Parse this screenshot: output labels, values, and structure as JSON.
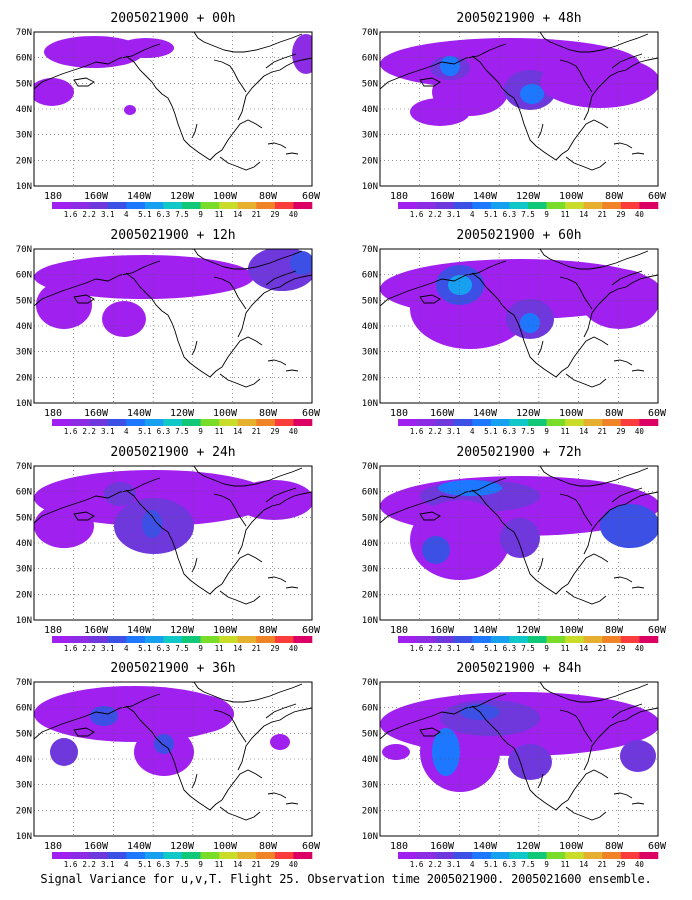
{
  "caption": "Signal Variance for u,v,T. Flight 25. Observation time 2005021900. 2005021600 ensemble.",
  "lat_labels": [
    "70N",
    "60N",
    "50N",
    "40N",
    "30N",
    "20N",
    "10N"
  ],
  "lon_labels": [
    "180",
    "160W",
    "140W",
    "120W",
    "100W",
    "80W",
    "60W"
  ],
  "colorbar": {
    "labels": [
      "1.6",
      "2.2",
      "3.1",
      "4",
      "5.1",
      "6.3",
      "7.5",
      "9",
      "11",
      "14",
      "21",
      "29",
      "40"
    ],
    "colors": [
      "#a020f0",
      "#8c2ce4",
      "#6e38dc",
      "#3c50e6",
      "#1e78ff",
      "#18a0f0",
      "#10c8c8",
      "#10c878",
      "#78dc28",
      "#c8dc28",
      "#e6af2d",
      "#f08228",
      "#fa3c3c",
      "#dc0064"
    ]
  },
  "panels": [
    {
      "title": "2005021900 + 00h",
      "forecast_hour": 0
    },
    {
      "title": "2005021900 + 48h",
      "forecast_hour": 48
    },
    {
      "title": "2005021900 + 12h",
      "forecast_hour": 12
    },
    {
      "title": "2005021900 + 60h",
      "forecast_hour": 60
    },
    {
      "title": "2005021900 + 24h",
      "forecast_hour": 24
    },
    {
      "title": "2005021900 + 72h",
      "forecast_hour": 72
    },
    {
      "title": "2005021900 + 36h",
      "forecast_hour": 36
    },
    {
      "title": "2005021900 + 84h",
      "forecast_hour": 84
    }
  ]
}
